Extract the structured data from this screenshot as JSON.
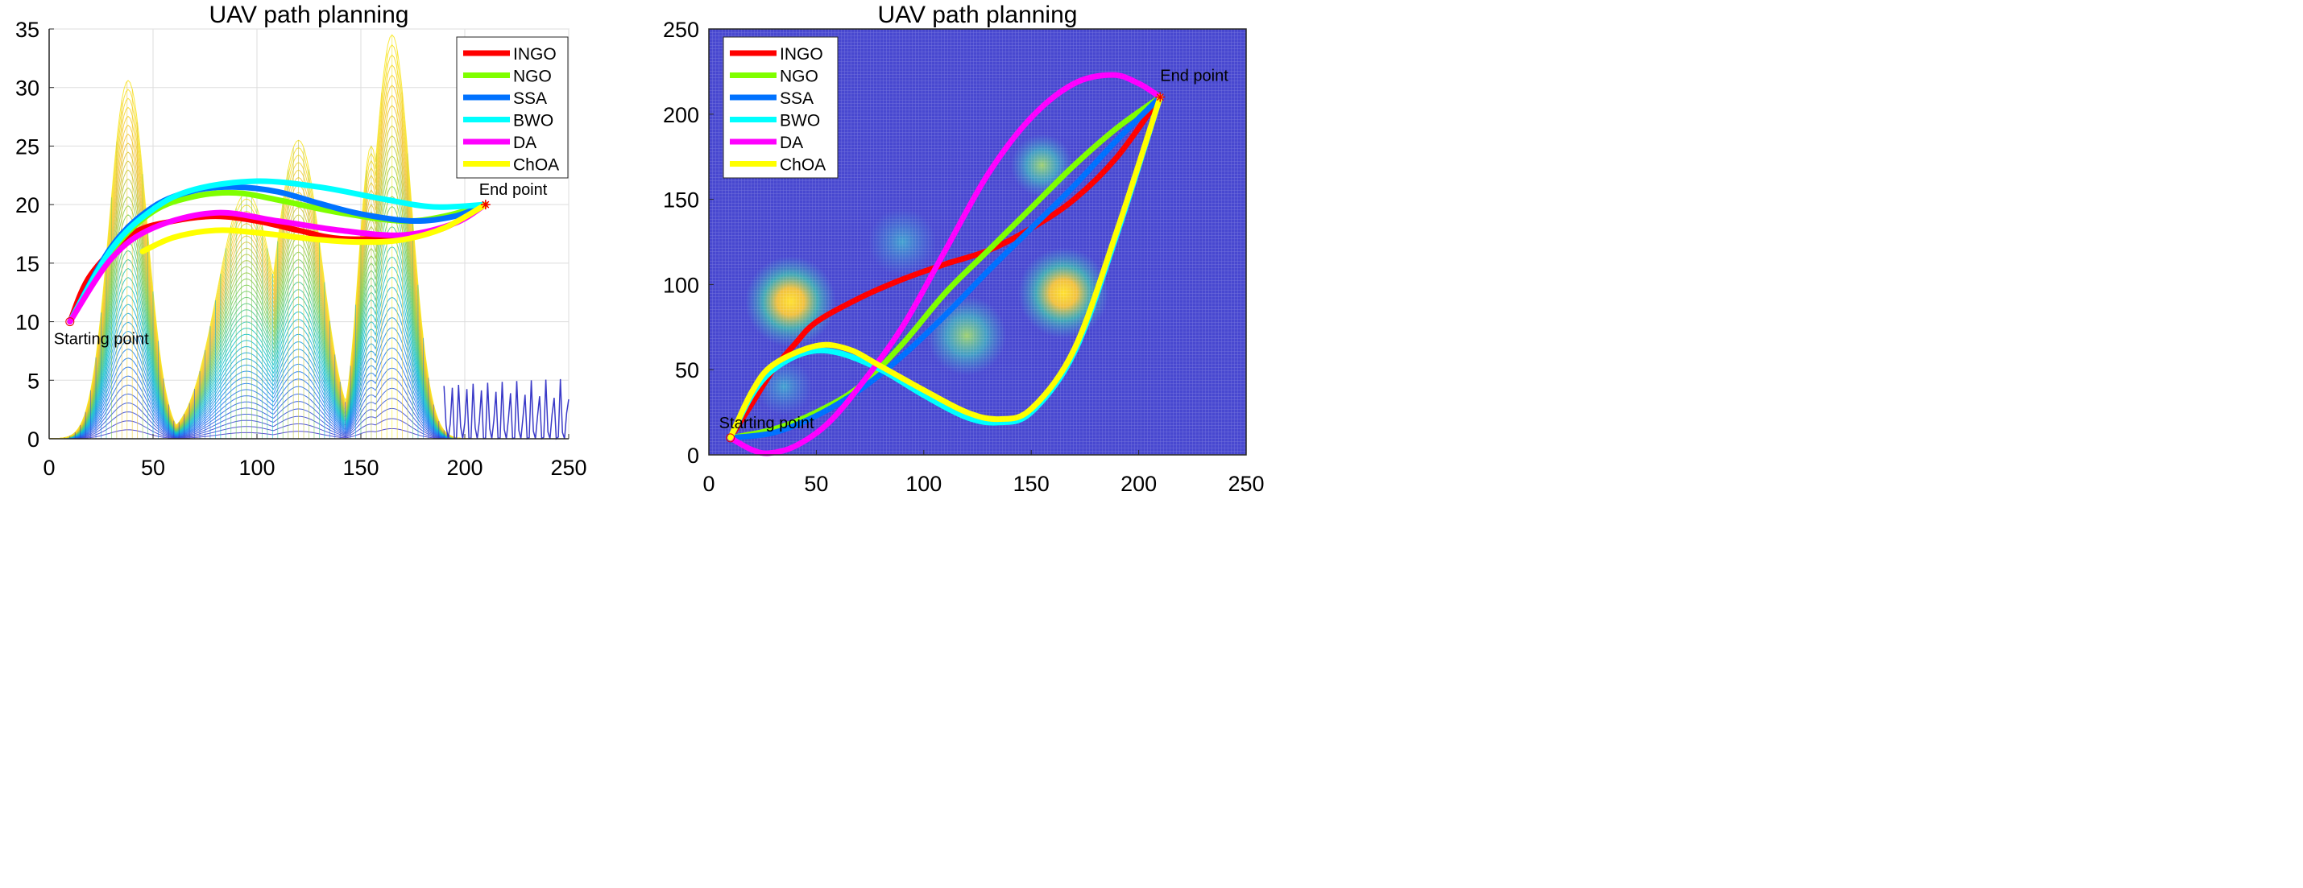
{
  "colors": {
    "INGO": "#ff0000",
    "NGO": "#7fff00",
    "SSA": "#0072ff",
    "BWO": "#00ffff",
    "DA": "#ff00ff",
    "ChOA": "#ffff00",
    "background_blue": "#4848d0"
  },
  "chart_data": [
    {
      "type": "line",
      "title": "UAV path planning",
      "view": "side (x vs altitude) over 3D terrain mesh",
      "xlim": [
        0,
        250
      ],
      "ylim": [
        0,
        35
      ],
      "xticks": [
        "0",
        "50",
        "100",
        "150",
        "200",
        "250"
      ],
      "yticks": [
        "0",
        "5",
        "10",
        "15",
        "20",
        "25",
        "30",
        "35"
      ],
      "grid": true,
      "legend_position": "top-right",
      "annotations": [
        {
          "text": "Starting point",
          "x": 10,
          "y": 10
        },
        {
          "text": "End point",
          "x": 210,
          "y": 20
        }
      ],
      "terrain_peaks": [
        {
          "x": 38,
          "height": 30.6
        },
        {
          "x": 35,
          "height": 20
        },
        {
          "x": 95,
          "height": 21
        },
        {
          "x": 120,
          "height": 25.5
        },
        {
          "x": 165,
          "height": 34.5
        },
        {
          "x": 155,
          "height": 25
        }
      ],
      "series": [
        {
          "name": "INGO",
          "points": [
            [
              10,
              10
            ],
            [
              20,
              14
            ],
            [
              40,
              17.5
            ],
            [
              60,
              18.6
            ],
            [
              80,
              19
            ],
            [
              100,
              18.6
            ],
            [
              120,
              17.8
            ],
            [
              140,
              17.1
            ],
            [
              170,
              17.2
            ],
            [
              190,
              18
            ],
            [
              210,
              20
            ]
          ]
        },
        {
          "name": "NGO",
          "points": [
            [
              10,
              10
            ],
            [
              30,
              16
            ],
            [
              50,
              19.4
            ],
            [
              70,
              20.7
            ],
            [
              90,
              21
            ],
            [
              110,
              20.4
            ],
            [
              140,
              19.3
            ],
            [
              170,
              18.6
            ],
            [
              190,
              19
            ],
            [
              210,
              20
            ]
          ]
        },
        {
          "name": "SSA",
          "points": [
            [
              10,
              10
            ],
            [
              30,
              16.4
            ],
            [
              50,
              19.8
            ],
            [
              70,
              21.2
            ],
            [
              90,
              21.5
            ],
            [
              110,
              21.1
            ],
            [
              130,
              20.1
            ],
            [
              150,
              19.2
            ],
            [
              175,
              18.6
            ],
            [
              195,
              19
            ],
            [
              210,
              20
            ]
          ]
        },
        {
          "name": "BWO",
          "points": [
            [
              10,
              10
            ],
            [
              30,
              16.2
            ],
            [
              50,
              19.6
            ],
            [
              70,
              21.3
            ],
            [
              100,
              22
            ],
            [
              130,
              21.5
            ],
            [
              160,
              20.5
            ],
            [
              185,
              19.8
            ],
            [
              210,
              20
            ]
          ]
        },
        {
          "name": "DA",
          "points": [
            [
              10,
              10
            ],
            [
              30,
              15.4
            ],
            [
              50,
              18
            ],
            [
              80,
              19.3
            ],
            [
              110,
              18.6
            ],
            [
              140,
              17.8
            ],
            [
              170,
              17.4
            ],
            [
              195,
              18.4
            ],
            [
              210,
              20
            ]
          ]
        },
        {
          "name": "ChOA",
          "points": [
            [
              45,
              16
            ],
            [
              60,
              17.2
            ],
            [
              80,
              17.8
            ],
            [
              100,
              17.6
            ],
            [
              130,
              17
            ],
            [
              150,
              16.8
            ],
            [
              170,
              17
            ],
            [
              190,
              18
            ],
            [
              210,
              20
            ]
          ]
        }
      ]
    },
    {
      "type": "line",
      "title": "UAV path planning",
      "view": "top (x vs y) over terrain heatmap",
      "xlim": [
        0,
        250
      ],
      "ylim": [
        0,
        250
      ],
      "xticks": [
        "0",
        "50",
        "100",
        "150",
        "200",
        "250"
      ],
      "yticks": [
        "0",
        "50",
        "100",
        "150",
        "200",
        "250"
      ],
      "grid": false,
      "legend_position": "top-left",
      "annotations": [
        {
          "text": "Starting point",
          "x": 10,
          "y": 10
        },
        {
          "text": "End point",
          "x": 210,
          "y": 210
        }
      ],
      "terrain_peaks": [
        {
          "x": 38,
          "y": 90,
          "height": 30.6
        },
        {
          "x": 165,
          "y": 95,
          "height": 34.5
        },
        {
          "x": 120,
          "y": 70,
          "height": 25.5
        },
        {
          "x": 155,
          "y": 170,
          "height": 25
        },
        {
          "x": 90,
          "y": 125,
          "height": 21
        },
        {
          "x": 35,
          "y": 40,
          "height": 20
        }
      ],
      "series": [
        {
          "name": "INGO",
          "points": [
            [
              10,
              10
            ],
            [
              20,
              30
            ],
            [
              30,
              50
            ],
            [
              40,
              65
            ],
            [
              50,
              78
            ],
            [
              70,
              92
            ],
            [
              90,
              103
            ],
            [
              110,
              112
            ],
            [
              130,
              120
            ],
            [
              150,
              133
            ],
            [
              170,
              150
            ],
            [
              190,
              175
            ],
            [
              210,
              210
            ]
          ]
        },
        {
          "name": "NGO",
          "points": [
            [
              10,
              10
            ],
            [
              30,
              15
            ],
            [
              50,
              25
            ],
            [
              70,
              40
            ],
            [
              90,
              65
            ],
            [
              110,
              95
            ],
            [
              130,
              120
            ],
            [
              150,
              145
            ],
            [
              170,
              170
            ],
            [
              190,
              192
            ],
            [
              210,
              210
            ]
          ]
        },
        {
          "name": "SSA",
          "points": [
            [
              10,
              10
            ],
            [
              30,
              13
            ],
            [
              50,
              23
            ],
            [
              70,
              38
            ],
            [
              90,
              58
            ],
            [
              110,
              82
            ],
            [
              130,
              108
            ],
            [
              150,
              133
            ],
            [
              170,
              158
            ],
            [
              190,
              185
            ],
            [
              210,
              210
            ]
          ]
        },
        {
          "name": "BWO",
          "points": [
            [
              10,
              10
            ],
            [
              20,
              35
            ],
            [
              30,
              50
            ],
            [
              45,
              60
            ],
            [
              60,
              60
            ],
            [
              80,
              50
            ],
            [
              100,
              35
            ],
            [
              120,
              22
            ],
            [
              135,
              19
            ],
            [
              150,
              25
            ],
            [
              170,
              60
            ],
            [
              190,
              130
            ],
            [
              210,
              210
            ]
          ]
        },
        {
          "name": "DA",
          "points": [
            [
              10,
              10
            ],
            [
              20,
              3
            ],
            [
              28,
              1
            ],
            [
              40,
              5
            ],
            [
              55,
              18
            ],
            [
              70,
              40
            ],
            [
              90,
              75
            ],
            [
              110,
              120
            ],
            [
              130,
              165
            ],
            [
              150,
              198
            ],
            [
              170,
              218
            ],
            [
              188,
              223
            ],
            [
              200,
              218
            ],
            [
              210,
              210
            ]
          ]
        },
        {
          "name": "ChOA",
          "points": [
            [
              10,
              10
            ],
            [
              20,
              37
            ],
            [
              30,
              53
            ],
            [
              50,
              64
            ],
            [
              65,
              62
            ],
            [
              80,
              52
            ],
            [
              100,
              38
            ],
            [
              120,
              25
            ],
            [
              135,
              21
            ],
            [
              150,
              27
            ],
            [
              170,
              62
            ],
            [
              190,
              132
            ],
            [
              210,
              210
            ]
          ]
        }
      ]
    }
  ]
}
